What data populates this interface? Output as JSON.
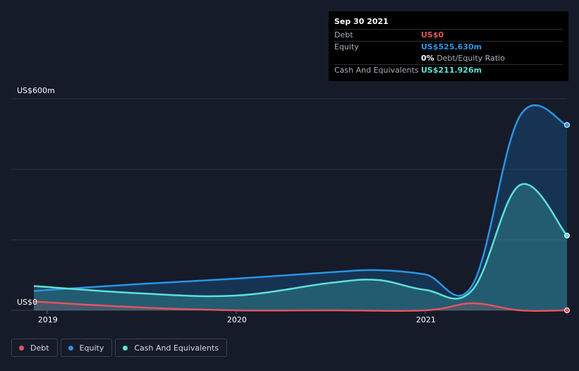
{
  "chart_data": {
    "type": "area",
    "y_unit_labels": {
      "top": "US$600m",
      "bottom": "US$0"
    },
    "ylim": [
      0,
      600
    ],
    "xlim": [
      2018.93,
      2021.75
    ],
    "x_ticks": [
      {
        "value": 2019.0,
        "label": "2019"
      },
      {
        "value": 2020.0,
        "label": "2020"
      },
      {
        "value": 2021.0,
        "label": "2021"
      }
    ],
    "series": [
      {
        "name": "Equity",
        "color": "#2b94e5",
        "points": [
          [
            2018.93,
            55
          ],
          [
            2019.5,
            75
          ],
          [
            2020.0,
            90
          ],
          [
            2020.5,
            108
          ],
          [
            2020.75,
            114
          ],
          [
            2021.0,
            102
          ],
          [
            2021.25,
            72
          ],
          [
            2021.5,
            550
          ],
          [
            2021.75,
            525.6
          ]
        ]
      },
      {
        "name": "Cash And Equivalents",
        "color": "#5ce1d6",
        "points": [
          [
            2018.93,
            69
          ],
          [
            2019.5,
            48
          ],
          [
            2020.0,
            42
          ],
          [
            2020.5,
            78
          ],
          [
            2020.75,
            86
          ],
          [
            2021.0,
            58
          ],
          [
            2021.25,
            58
          ],
          [
            2021.5,
            355
          ],
          [
            2021.75,
            211.9
          ]
        ]
      },
      {
        "name": "Debt",
        "color": "#e5535f",
        "points": [
          [
            2018.93,
            25
          ],
          [
            2019.5,
            8
          ],
          [
            2020.0,
            0
          ],
          [
            2020.5,
            0
          ],
          [
            2021.0,
            0
          ],
          [
            2021.25,
            20
          ],
          [
            2021.5,
            0
          ],
          [
            2021.75,
            0
          ]
        ]
      }
    ]
  },
  "tooltip": {
    "date": "Sep 30 2021",
    "debt_label": "Debt",
    "debt_value": "US$0",
    "equity_label": "Equity",
    "equity_value": "US$525.630m",
    "ratio_value": "0%",
    "ratio_label": "Debt/Equity Ratio",
    "cash_label": "Cash And Equivalents",
    "cash_value": "US$211.926m"
  },
  "legend": [
    {
      "label": "Debt",
      "color": "#e5535f"
    },
    {
      "label": "Equity",
      "color": "#2b94e5"
    },
    {
      "label": "Cash And Equivalents",
      "color": "#5ce1d6"
    }
  ]
}
